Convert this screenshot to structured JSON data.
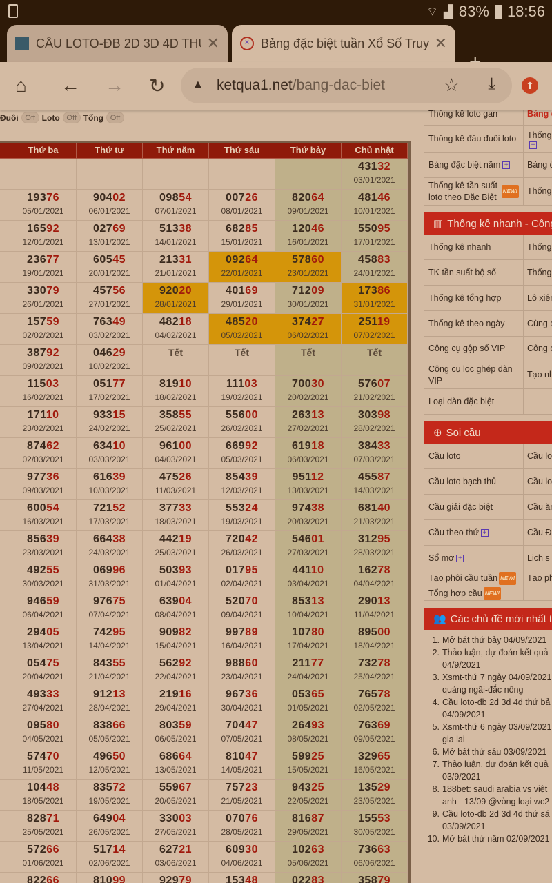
{
  "status": {
    "battery": "83%",
    "time": "18:56"
  },
  "browser": {
    "tabs": [
      {
        "title": "CẦU LOTO-ĐB 2D 3D 4D THỨ",
        "active": false
      },
      {
        "title": "Bảng đặc biệt tuần Xổ Số Truy",
        "active": true
      }
    ],
    "url_domain": "ketqua1.net",
    "url_path": "/bang-dac-biet"
  },
  "toggles": [
    {
      "label": "Đuôi",
      "state": "Off"
    },
    {
      "label": "Loto",
      "state": "Off"
    },
    {
      "label": "Tổng",
      "state": "Off"
    }
  ],
  "table": {
    "headers": [
      "",
      "Thứ ba",
      "Thứ tư",
      "Thứ năm",
      "Thứ sáu",
      "Thứ bảy",
      "Chủ nhật"
    ],
    "colors": {
      "header": "#8f1a0a",
      "weekend": "#bfb08a",
      "highlight": "#d4950a",
      "tail": "#a0190c"
    },
    "rows": [
      [
        null,
        null,
        null,
        null,
        null,
        {
          "n": "43132",
          "d": "03/01/2021"
        }
      ],
      [
        {
          "n": "19376",
          "d": "05/01/2021"
        },
        {
          "n": "90402",
          "d": "06/01/2021"
        },
        {
          "n": "09854",
          "d": "07/01/2021"
        },
        {
          "n": "00726",
          "d": "08/01/2021"
        },
        {
          "n": "82064",
          "d": "09/01/2021"
        },
        {
          "n": "48146",
          "d": "10/01/2021"
        }
      ],
      [
        {
          "n": "16592",
          "d": "12/01/2021"
        },
        {
          "n": "02769",
          "d": "13/01/2021"
        },
        {
          "n": "51338",
          "d": "14/01/2021"
        },
        {
          "n": "68285",
          "d": "15/01/2021"
        },
        {
          "n": "12046",
          "d": "16/01/2021"
        },
        {
          "n": "55095",
          "d": "17/01/2021"
        }
      ],
      [
        {
          "n": "23677",
          "d": "19/01/2021"
        },
        {
          "n": "60545",
          "d": "20/01/2021"
        },
        {
          "n": "21331",
          "d": "21/01/2021"
        },
        {
          "n": "09264",
          "d": "22/01/2021",
          "h": true
        },
        {
          "n": "57860",
          "d": "23/01/2021",
          "h": true
        },
        {
          "n": "45883",
          "d": "24/01/2021"
        }
      ],
      [
        {
          "n": "33079",
          "d": "26/01/2021"
        },
        {
          "n": "45756",
          "d": "27/01/2021"
        },
        {
          "n": "92020",
          "d": "28/01/2021",
          "h": true
        },
        {
          "n": "40169",
          "d": "29/01/2021"
        },
        {
          "n": "71209",
          "d": "30/01/2021"
        },
        {
          "n": "17386",
          "d": "31/01/2021",
          "h": true
        }
      ],
      [
        {
          "n": "15759",
          "d": "02/02/2021"
        },
        {
          "n": "76349",
          "d": "03/02/2021"
        },
        {
          "n": "48218",
          "d": "04/02/2021"
        },
        {
          "n": "48520",
          "d": "05/02/2021",
          "h": true
        },
        {
          "n": "37427",
          "d": "06/02/2021",
          "h": true
        },
        {
          "n": "25119",
          "d": "07/02/2021",
          "h": true
        }
      ],
      [
        {
          "n": "38792",
          "d": "09/02/2021"
        },
        {
          "n": "04629",
          "d": "10/02/2021"
        },
        {
          "t": "Tết"
        },
        {
          "t": "Tết"
        },
        {
          "t": "Tết"
        },
        {
          "t": "Tết"
        }
      ],
      [
        {
          "n": "11503",
          "d": "16/02/2021"
        },
        {
          "n": "05177",
          "d": "17/02/2021"
        },
        {
          "n": "81910",
          "d": "18/02/2021"
        },
        {
          "n": "11103",
          "d": "19/02/2021"
        },
        {
          "n": "70030",
          "d": "20/02/2021"
        },
        {
          "n": "57607",
          "d": "21/02/2021"
        }
      ],
      [
        {
          "n": "17110",
          "d": "23/02/2021"
        },
        {
          "n": "93315",
          "d": "24/02/2021"
        },
        {
          "n": "35855",
          "d": "25/02/2021"
        },
        {
          "n": "55600",
          "d": "26/02/2021"
        },
        {
          "n": "26313",
          "d": "27/02/2021"
        },
        {
          "n": "30398",
          "d": "28/02/2021"
        }
      ],
      [
        {
          "n": "87462",
          "d": "02/03/2021"
        },
        {
          "n": "63410",
          "d": "03/03/2021"
        },
        {
          "n": "96100",
          "d": "04/03/2021"
        },
        {
          "n": "66992",
          "d": "05/03/2021"
        },
        {
          "n": "61918",
          "d": "06/03/2021"
        },
        {
          "n": "38433",
          "d": "07/03/2021"
        }
      ],
      [
        {
          "n": "97736",
          "d": "09/03/2021"
        },
        {
          "n": "61639",
          "d": "10/03/2021"
        },
        {
          "n": "47526",
          "d": "11/03/2021"
        },
        {
          "n": "85439",
          "d": "12/03/2021"
        },
        {
          "n": "95112",
          "d": "13/03/2021"
        },
        {
          "n": "45587",
          "d": "14/03/2021"
        }
      ],
      [
        {
          "n": "60054",
          "d": "16/03/2021"
        },
        {
          "n": "72152",
          "d": "17/03/2021"
        },
        {
          "n": "37733",
          "d": "18/03/2021"
        },
        {
          "n": "55324",
          "d": "19/03/2021"
        },
        {
          "n": "97438",
          "d": "20/03/2021"
        },
        {
          "n": "68140",
          "d": "21/03/2021"
        }
      ],
      [
        {
          "n": "85639",
          "d": "23/03/2021"
        },
        {
          "n": "66438",
          "d": "24/03/2021"
        },
        {
          "n": "44219",
          "d": "25/03/2021"
        },
        {
          "n": "72042",
          "d": "26/03/2021"
        },
        {
          "n": "54601",
          "d": "27/03/2021"
        },
        {
          "n": "31295",
          "d": "28/03/2021"
        }
      ],
      [
        {
          "n": "49255",
          "d": "30/03/2021"
        },
        {
          "n": "06996",
          "d": "31/03/2021"
        },
        {
          "n": "50393",
          "d": "01/04/2021"
        },
        {
          "n": "01795",
          "d": "02/04/2021"
        },
        {
          "n": "44110",
          "d": "03/04/2021"
        },
        {
          "n": "16278",
          "d": "04/04/2021"
        }
      ],
      [
        {
          "n": "94659",
          "d": "06/04/2021"
        },
        {
          "n": "97675",
          "d": "07/04/2021"
        },
        {
          "n": "63904",
          "d": "08/04/2021"
        },
        {
          "n": "52070",
          "d": "09/04/2021"
        },
        {
          "n": "85313",
          "d": "10/04/2021"
        },
        {
          "n": "29013",
          "d": "11/04/2021"
        }
      ],
      [
        {
          "n": "29405",
          "d": "13/04/2021"
        },
        {
          "n": "74295",
          "d": "14/04/2021"
        },
        {
          "n": "90982",
          "d": "15/04/2021"
        },
        {
          "n": "99789",
          "d": "16/04/2021"
        },
        {
          "n": "10780",
          "d": "17/04/2021"
        },
        {
          "n": "89500",
          "d": "18/04/2021"
        }
      ],
      [
        {
          "n": "05475",
          "d": "20/04/2021"
        },
        {
          "n": "84355",
          "d": "21/04/2021"
        },
        {
          "n": "56292",
          "d": "22/04/2021"
        },
        {
          "n": "98860",
          "d": "23/04/2021"
        },
        {
          "n": "21177",
          "d": "24/04/2021"
        },
        {
          "n": "73278",
          "d": "25/04/2021"
        }
      ],
      [
        {
          "n": "49333",
          "d": "27/04/2021"
        },
        {
          "n": "91213",
          "d": "28/04/2021"
        },
        {
          "n": "21916",
          "d": "29/04/2021"
        },
        {
          "n": "96736",
          "d": "30/04/2021"
        },
        {
          "n": "05365",
          "d": "01/05/2021"
        },
        {
          "n": "76578",
          "d": "02/05/2021"
        }
      ],
      [
        {
          "n": "09580",
          "d": "04/05/2021"
        },
        {
          "n": "83866",
          "d": "05/05/2021"
        },
        {
          "n": "80359",
          "d": "06/05/2021"
        },
        {
          "n": "70447",
          "d": "07/05/2021"
        },
        {
          "n": "26493",
          "d": "08/05/2021"
        },
        {
          "n": "76369",
          "d": "09/05/2021"
        }
      ],
      [
        {
          "n": "57470",
          "d": "11/05/2021"
        },
        {
          "n": "49650",
          "d": "12/05/2021"
        },
        {
          "n": "68664",
          "d": "13/05/2021"
        },
        {
          "n": "81047",
          "d": "14/05/2021"
        },
        {
          "n": "59925",
          "d": "15/05/2021"
        },
        {
          "n": "32965",
          "d": "16/05/2021"
        }
      ],
      [
        {
          "n": "10448",
          "d": "18/05/2021"
        },
        {
          "n": "83572",
          "d": "19/05/2021"
        },
        {
          "n": "55967",
          "d": "20/05/2021"
        },
        {
          "n": "75723",
          "d": "21/05/2021"
        },
        {
          "n": "94325",
          "d": "22/05/2021"
        },
        {
          "n": "13529",
          "d": "23/05/2021"
        }
      ],
      [
        {
          "n": "82871",
          "d": "25/05/2021"
        },
        {
          "n": "64904",
          "d": "26/05/2021"
        },
        {
          "n": "33003",
          "d": "27/05/2021"
        },
        {
          "n": "07076",
          "d": "28/05/2021"
        },
        {
          "n": "81687",
          "d": "29/05/2021"
        },
        {
          "n": "15553",
          "d": "30/05/2021"
        }
      ],
      [
        {
          "n": "57266",
          "d": "01/06/2021"
        },
        {
          "n": "51714",
          "d": "02/06/2021"
        },
        {
          "n": "62721",
          "d": "03/06/2021"
        },
        {
          "n": "60930",
          "d": "04/06/2021"
        },
        {
          "n": "10263",
          "d": "05/06/2021"
        },
        {
          "n": "73663",
          "d": "06/06/2021"
        }
      ],
      [
        {
          "n": "82266"
        },
        {
          "n": "81099"
        },
        {
          "n": "92979"
        },
        {
          "n": "15348"
        },
        {
          "n": "02283"
        },
        {
          "n": "35879"
        }
      ]
    ]
  },
  "sidebar": {
    "stats_rows": [
      {
        "a": "Thống kê loto gan",
        "b": "Bảng đ",
        "b_red": true,
        "h": 32
      },
      {
        "a": "Thống kê đầu đuôi loto",
        "b": "Thống",
        "b_plus": true,
        "h": 40
      },
      {
        "a": "Bảng đặc biệt năm",
        "a_plus": true,
        "b": "Bảng đ",
        "h": 36
      },
      {
        "a": "Thống kê tần suất loto theo Đặc Biệt",
        "a_new": true,
        "b": "Thống theo lo",
        "h": 40
      }
    ],
    "quick_title": "Thống kê nhanh - Công",
    "quick_rows": [
      {
        "a": "Thống kê nhanh",
        "b": "Thống",
        "h": 37
      },
      {
        "a": "TK tần suất bộ số",
        "b": "Thống",
        "h": 37
      },
      {
        "a": "Thống kê tổng hợp",
        "b": "Lô xiên",
        "h": 37
      },
      {
        "a": "Thống kê theo ngày",
        "b": "Cùng c",
        "h": 37
      },
      {
        "a": "Công cụ gộp số VIP",
        "b": "Công c",
        "h": 36
      },
      {
        "a": "Công cụ lọc ghép dàn VIP",
        "b": "Tạo nh biệt",
        "h": 40
      },
      {
        "a": "Loại dàn đặc biệt",
        "b": "",
        "h": 37
      }
    ],
    "soi_title": "Soi cầu",
    "soi_rows": [
      {
        "a": "Cầu loto",
        "b": "Cầu lo",
        "h": 37
      },
      {
        "a": "Cầu loto bạch thủ",
        "b": "Cầu lo",
        "h": 37
      },
      {
        "a": "Cầu giải đặc biệt",
        "b": "Cầu ăn",
        "h": 37
      },
      {
        "a": "Cầu theo thứ",
        "a_plus": true,
        "b": "Cầu Đ",
        "h": 37
      },
      {
        "a": "Sổ mơ",
        "a_plus": true,
        "b": "Lịch s",
        "h": 37
      },
      {
        "a": "Tạo phôi cầu tuần",
        "a_new": true,
        "b": "Tạo ph",
        "h": 22
      },
      {
        "a": "Tổng hợp cầu",
        "a_new": true,
        "b": "",
        "h": 21
      }
    ],
    "new_badge": "NEW!",
    "topics_title": "Các chủ đề mới nhất trê",
    "topics": [
      "Mở bát thứ bảy 04/09/2021",
      "Thảo luận, dự đoán kết quả 04/9/2021",
      "Xsmt-thứ 7 ngày 04/09/2021 quảng ngãi-đắc nông",
      "Cầu loto-đb 2d 3d 4d thứ bả 04/09/2021",
      "Xsmt-thứ 6 ngày 03/09/2021 gia lai",
      "Mở bát thứ sáu 03/09/2021",
      "Thảo luận, dự đoán kết quả 03/9/2021",
      "188bet: saudi arabia vs việt anh - 13/09 @vòng loại wc2",
      "Cầu loto-đb 2d 3d 4d thứ sá 03/09/2021",
      "Mở bát thứ năm 02/09/2021"
    ]
  }
}
